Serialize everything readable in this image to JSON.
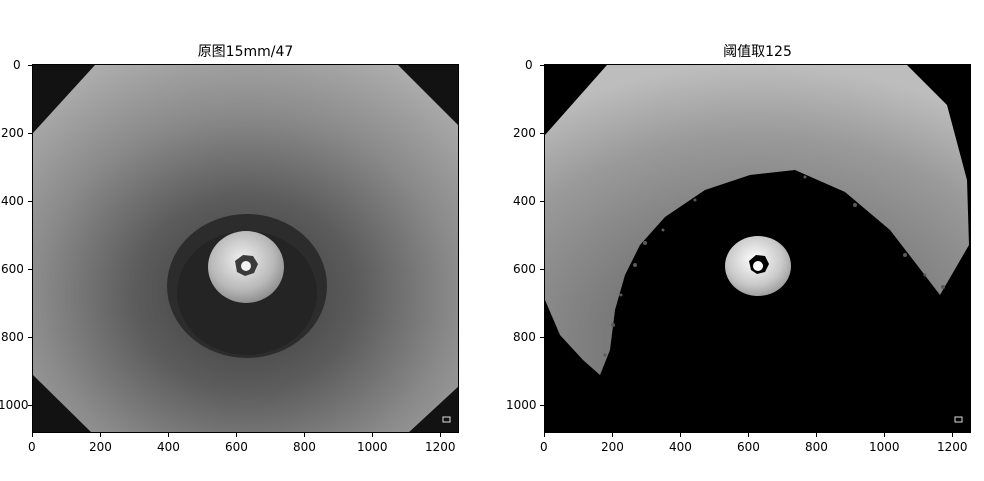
{
  "figure": {
    "panels": [
      {
        "title": "原图15mm/47",
        "xticks": [
          "0",
          "200",
          "400",
          "600",
          "800",
          "1000",
          "1200"
        ],
        "yticks": [
          "0",
          "200",
          "400",
          "600",
          "800",
          "1000"
        ]
      },
      {
        "title": "阈值取125",
        "xticks": [
          "0",
          "200",
          "400",
          "600",
          "800",
          "1000",
          "1200"
        ],
        "yticks": [
          "0",
          "200",
          "400",
          "600",
          "800",
          "1000"
        ]
      }
    ],
    "axis_ranges": {
      "x": [
        0,
        1250
      ],
      "y": [
        0,
        1080
      ]
    },
    "colors": {
      "text": "#000000",
      "background": "#ffffff"
    }
  }
}
